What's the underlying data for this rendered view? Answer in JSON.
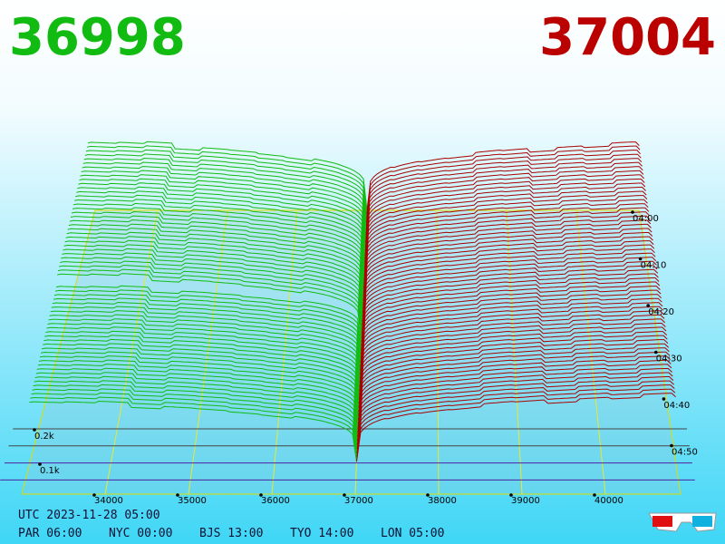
{
  "header": {
    "bid": "36998",
    "ask": "37004"
  },
  "price_labels": [
    "34000",
    "35000",
    "36000",
    "37000",
    "38000",
    "39000",
    "40000"
  ],
  "depth_labels": [
    "0.2k",
    "0.1k"
  ],
  "time_labels": [
    "04:00",
    "04:10",
    "04:20",
    "04:30",
    "04:40",
    "04:50"
  ],
  "footer": {
    "utc": "UTC 2023-11-28 05:00",
    "clocks": [
      "PAR 06:00",
      "NYC 00:00",
      "BJS 13:00",
      "TYO 14:00",
      "LON 05:00"
    ]
  }
}
